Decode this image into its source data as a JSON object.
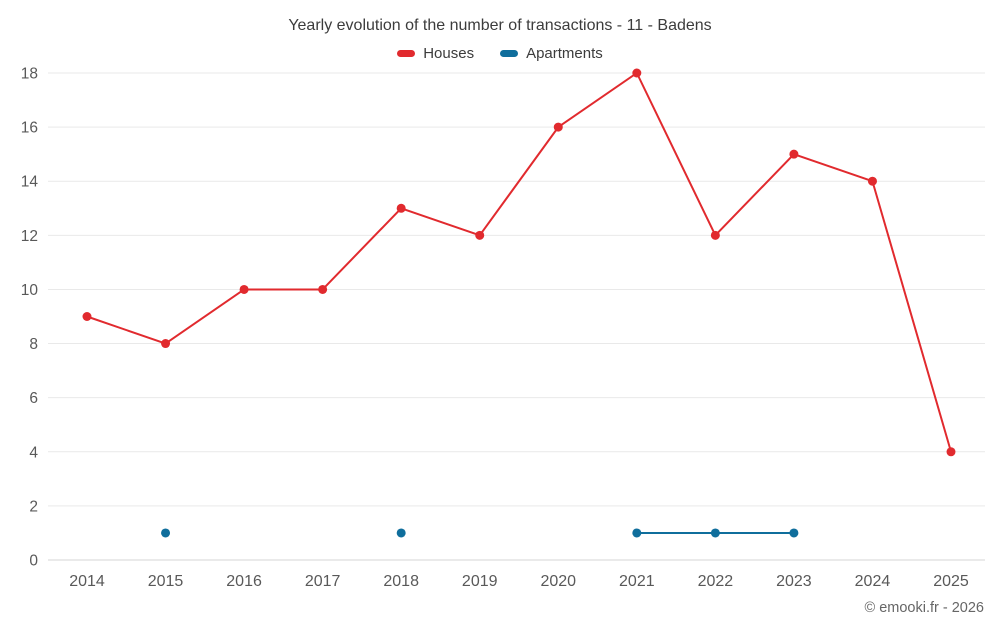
{
  "footer": "© emooki.fr - 2026",
  "chart_data": {
    "type": "line",
    "title": "Yearly evolution of the number of transactions - 11 - Badens",
    "categories": [
      "2014",
      "2015",
      "2016",
      "2017",
      "2018",
      "2019",
      "2020",
      "2021",
      "2022",
      "2023",
      "2024",
      "2025"
    ],
    "series": [
      {
        "name": "Houses",
        "color": "#e12a2e",
        "values": [
          9,
          8,
          10,
          10,
          13,
          12,
          16,
          18,
          12,
          15,
          14,
          4
        ]
      },
      {
        "name": "Apartments",
        "color": "#0f6e9c",
        "values": [
          null,
          1,
          null,
          null,
          1,
          null,
          null,
          1,
          1,
          1,
          null,
          null
        ]
      }
    ],
    "ylim": [
      0,
      18
    ],
    "ytick_step": 2,
    "grid": "horizontal",
    "legend_position": "top",
    "xlabel": "",
    "ylabel": ""
  }
}
